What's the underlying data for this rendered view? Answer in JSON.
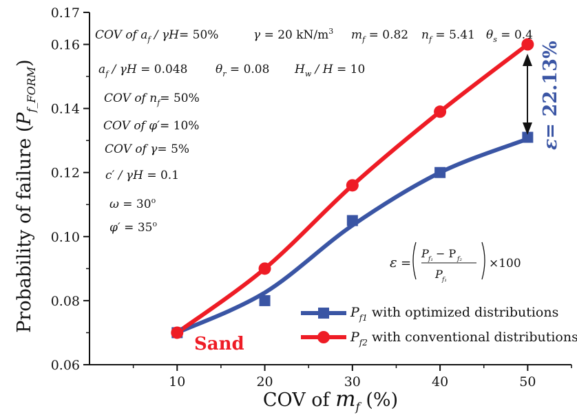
{
  "chart_data": {
    "type": "line",
    "title": "",
    "xlabel": "COV of m_f (%)",
    "ylabel": "Probability of failure (P_f_FORM)",
    "x": [
      10,
      20,
      30,
      40,
      50
    ],
    "xticks": [
      "10",
      "20",
      "30",
      "40",
      "50"
    ],
    "yticks": [
      "0.06",
      "0.08",
      "0.10",
      "0.12",
      "0.14",
      "0.16",
      "0.17"
    ],
    "xlim": [
      0,
      55
    ],
    "ylim": [
      0.06,
      0.17
    ],
    "grid": false,
    "legend_position": "bottom-right",
    "series": [
      {
        "name": "P_f1 with optimized distributions",
        "marker": "square",
        "color": "#3a55a4",
        "values": [
          0.07,
          0.08,
          0.105,
          0.12,
          0.131
        ]
      },
      {
        "name": "P_f2 with conventional distributions",
        "marker": "circle",
        "color": "#ee1c25",
        "values": [
          0.07,
          0.09,
          0.116,
          0.139,
          0.16
        ]
      }
    ],
    "annotations": {
      "epsilon_value": "ε = 22.13%",
      "epsilon_formula": "ε = ((P_f1 − P_f2) / P_f1) × 100",
      "soil_label": "Sand",
      "parameters": [
        "COV of a_f / γH = 50%",
        "γ = 20 kN/m³",
        "m_f = 0.82",
        "n_f = 5.41",
        "θ_s = 0.4",
        "a_f / γH = 0.048",
        "θ_r = 0.08",
        "H_w / H = 10",
        "COV of n_f = 50%",
        "COV of φ′ = 10%",
        "COV of γ = 5%",
        "c′ / γH = 0.1",
        "ω = 30°",
        "φ′ = 35°"
      ]
    }
  }
}
